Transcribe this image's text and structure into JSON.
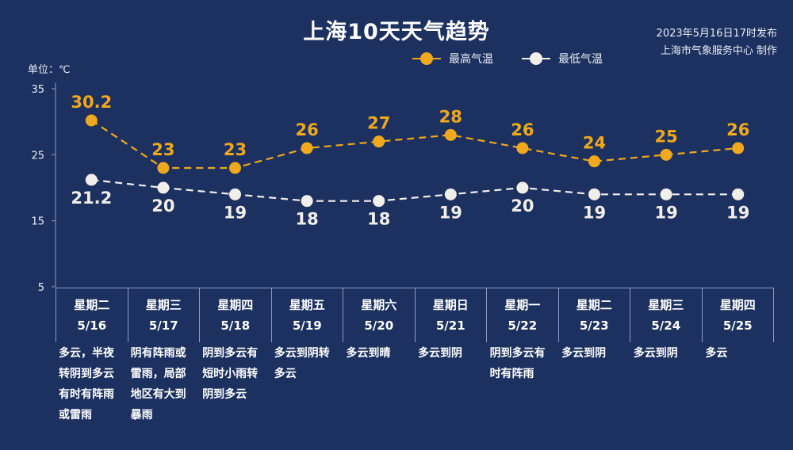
{
  "title": "上海10天天气趋势",
  "source": {
    "line1": "2023年5月16日17时发布",
    "line2": "上海市气象服务中心 制作"
  },
  "unit": "单位：℃",
  "legend": {
    "high": "最高气温",
    "low": "最低气温"
  },
  "colors": {
    "high": "#f0a81c",
    "low": "#f2eeea",
    "background": "#1d3160",
    "axis": "#8a9bc4"
  },
  "chart_data": {
    "type": "line",
    "categories": [
      "5/16",
      "5/17",
      "5/18",
      "5/19",
      "5/20",
      "5/21",
      "5/22",
      "5/23",
      "5/24",
      "5/25"
    ],
    "weekdays": [
      "星期二",
      "星期三",
      "星期四",
      "星期五",
      "星期六",
      "星期日",
      "星期一",
      "星期二",
      "星期三",
      "星期四"
    ],
    "conditions": [
      "多云，半夜转阴到多云有时有阵雨或雷雨",
      "阴有阵雨或雷雨，局部地区有大到暴雨",
      "阴到多云有短时小雨转阴到多云",
      "多云到阴转多云",
      "多云到晴",
      "多云到阴",
      "阴到多云有时有阵雨",
      "多云到阴",
      "多云到阴",
      "多云"
    ],
    "series": [
      {
        "name": "最高气温",
        "values": [
          30.2,
          23,
          23,
          26,
          27,
          28,
          26,
          24,
          25,
          26
        ],
        "labels": [
          "30.2",
          "23",
          "23",
          "26",
          "27",
          "28",
          "26",
          "24",
          "25",
          "26"
        ]
      },
      {
        "name": "最低气温",
        "values": [
          21.2,
          20,
          19,
          18,
          18,
          19,
          20,
          19,
          19,
          19
        ],
        "labels": [
          "21.2",
          "20",
          "19",
          "18",
          "18",
          "19",
          "20",
          "19",
          "19",
          "19"
        ]
      }
    ],
    "yticks": [
      "5",
      "15",
      "25",
      "35"
    ],
    "ylim": [
      5,
      35
    ],
    "line_style": "dashed",
    "grid": false,
    "legend_position": "top-right"
  }
}
